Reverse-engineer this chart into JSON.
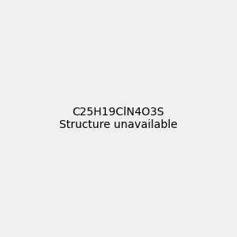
{
  "background_color": "#f0f0f0",
  "bond_color": "#2d6e4e",
  "N_color": "#0000ff",
  "O_color": "#ff0000",
  "S_color": "#cccc00",
  "Cl_color": "#00cc00",
  "text_color": "#2d6e4e",
  "title": "C25H19ClN4O3S",
  "figsize": [
    3.0,
    3.0
  ],
  "dpi": 100
}
